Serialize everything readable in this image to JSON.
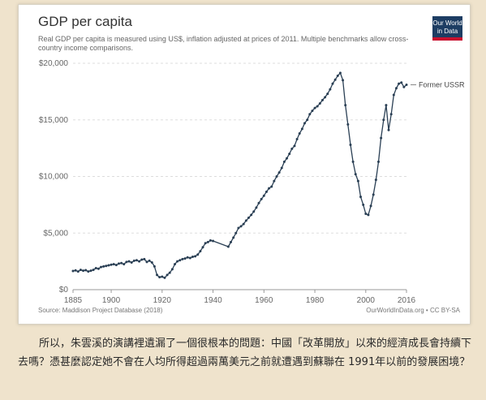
{
  "header": {
    "title": "GDP per capita",
    "subtitle": "Real GDP per capita is measured using US$, inflation adjusted at prices of 2011. Multiple benchmarks allow cross-country income comparisons."
  },
  "logo": {
    "line1": "Our World",
    "line2": "in Data"
  },
  "footer": {
    "source": "Source: Maddison Project Database (2018)",
    "credit": "OurWorldInData.org • CC BY-SA"
  },
  "caption": "所以，朱雲溪的演講裡遺漏了一個很根本的問題：中國「改革開放」以來的經濟成長會持續下去嗎？憑甚麼認定她不會在人均所得超過兩萬美元之前就遭遇到蘇聯在 1991年以前的發展困境？",
  "colors": {
    "series": "#2a3f54",
    "grid": "#dddddd",
    "logo_bg": "#1d3d63",
    "logo_bar": "#c8102e"
  },
  "chart_data": {
    "type": "line",
    "xlim": [
      1885,
      2016
    ],
    "ylim": [
      0,
      20000
    ],
    "x_ticks": [
      "1885",
      "1900",
      "1920",
      "1940",
      "1960",
      "1980",
      "2000",
      "2016"
    ],
    "y_ticks": [
      "$0",
      "$5,000",
      "$10,000",
      "$15,000",
      "$20,000"
    ],
    "y_tick_values": [
      0,
      5000,
      10000,
      15000,
      20000
    ],
    "grid": "horizontal dashed",
    "series": [
      {
        "name": "Former USSR",
        "x": [
          1885,
          1886,
          1887,
          1888,
          1889,
          1890,
          1891,
          1892,
          1893,
          1894,
          1895,
          1896,
          1897,
          1898,
          1899,
          1900,
          1901,
          1902,
          1903,
          1904,
          1905,
          1906,
          1907,
          1908,
          1909,
          1910,
          1911,
          1912,
          1913,
          1914,
          1915,
          1916,
          1917,
          1918,
          1919,
          1920,
          1921,
          1922,
          1923,
          1924,
          1925,
          1926,
          1927,
          1928,
          1929,
          1930,
          1931,
          1932,
          1933,
          1934,
          1935,
          1936,
          1937,
          1938,
          1939,
          1940,
          1946,
          1947,
          1948,
          1949,
          1950,
          1951,
          1952,
          1953,
          1954,
          1955,
          1956,
          1957,
          1958,
          1959,
          1960,
          1961,
          1962,
          1963,
          1964,
          1965,
          1966,
          1967,
          1968,
          1969,
          1970,
          1971,
          1972,
          1973,
          1974,
          1975,
          1976,
          1977,
          1978,
          1979,
          1980,
          1981,
          1982,
          1983,
          1984,
          1985,
          1986,
          1987,
          1988,
          1989,
          1990,
          1991,
          1992,
          1993,
          1994,
          1995,
          1996,
          1997,
          1998,
          1999,
          2000,
          2001,
          2002,
          2003,
          2004,
          2005,
          2006,
          2007,
          2008,
          2009,
          2010,
          2011,
          2012,
          2013,
          2014,
          2015,
          2016
        ],
        "y": [
          1650,
          1700,
          1600,
          1750,
          1680,
          1720,
          1600,
          1680,
          1750,
          1900,
          1850,
          2000,
          2050,
          2100,
          2150,
          2200,
          2250,
          2180,
          2300,
          2350,
          2250,
          2450,
          2500,
          2400,
          2550,
          2600,
          2500,
          2650,
          2700,
          2450,
          2550,
          2400,
          2050,
          1300,
          1100,
          1150,
          1050,
          1300,
          1500,
          1800,
          2250,
          2500,
          2600,
          2700,
          2750,
          2850,
          2800,
          2900,
          2950,
          3100,
          3400,
          3750,
          4100,
          4200,
          4350,
          4300,
          3800,
          4200,
          4600,
          5000,
          5450,
          5600,
          5800,
          6100,
          6350,
          6600,
          6900,
          7250,
          7650,
          8000,
          8300,
          8650,
          8950,
          9100,
          9600,
          10000,
          10350,
          10750,
          11300,
          11600,
          12000,
          12450,
          12700,
          13300,
          13800,
          14200,
          14700,
          15000,
          15500,
          15800,
          16050,
          16200,
          16450,
          16750,
          17000,
          17300,
          17700,
          18200,
          18550,
          18900,
          19150,
          18500,
          16300,
          14600,
          12800,
          11300,
          10200,
          9600,
          8200,
          7500,
          6700,
          6600,
          7400,
          8400,
          9700,
          11300,
          13400,
          15000,
          16300,
          14100,
          15500,
          17200,
          17800,
          18200,
          18300,
          17900,
          18100
        ]
      }
    ]
  }
}
